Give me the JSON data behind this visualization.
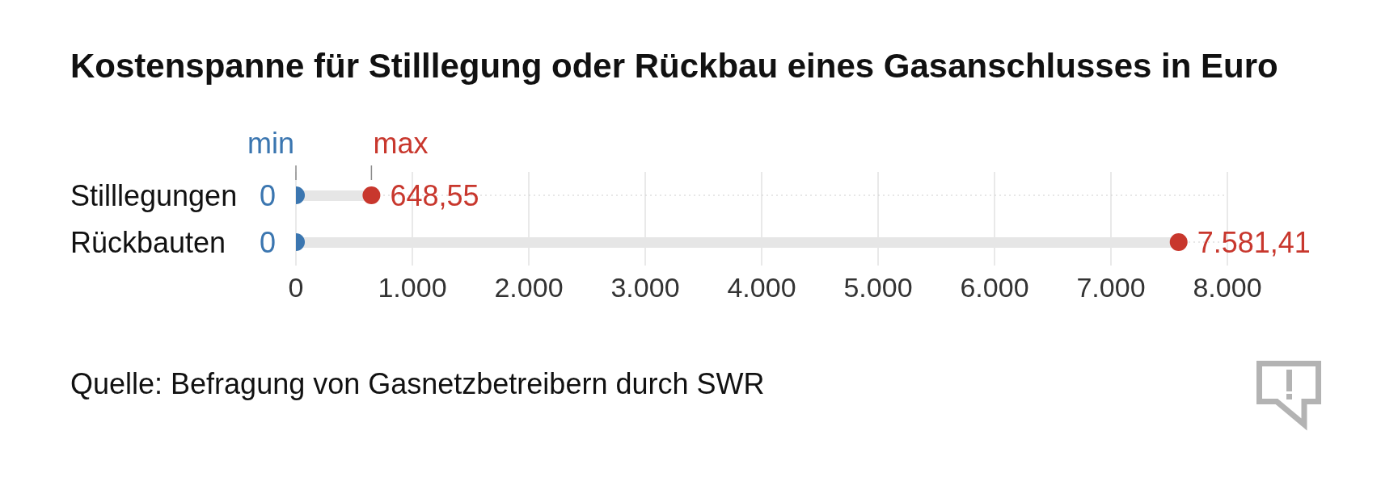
{
  "chart_data": {
    "type": "lollipop",
    "orientation": "horizontal",
    "title": "Kostenspanne für Stilllegung oder Rückbau eines Gasanschlusses in Euro",
    "categories": [
      "Stilllegungen",
      "Rückbauten"
    ],
    "series": [
      {
        "name": "min",
        "type": "scatter",
        "color": "#3b76b0",
        "values": [
          0,
          0
        ],
        "value_labels": [
          "0",
          "0"
        ]
      },
      {
        "name": "max",
        "color": "#c8372d",
        "values": [
          648.55,
          7581.41
        ],
        "value_labels": [
          "648,55",
          "7.581,41"
        ]
      }
    ],
    "xlim": [
      0,
      8000
    ],
    "xticks": [
      0,
      {
        "value": 1000,
        "label": "1.000"
      },
      {
        "value": 2000,
        "label": "2.000"
      },
      {
        "value": 3000,
        "label": "3.000"
      },
      {
        "value": 4000,
        "label": "4.000"
      },
      {
        "value": 5000,
        "label": "5.000"
      },
      {
        "value": 6000,
        "label": "6.000"
      },
      {
        "value": 7000,
        "label": "7.000"
      },
      {
        "value": 8000,
        "label": "8.000"
      }
    ],
    "grid": true,
    "marker": "circle",
    "annotations": [
      "Quelle: Befragung von Gasnetzbetreibern durch SWR"
    ]
  }
}
